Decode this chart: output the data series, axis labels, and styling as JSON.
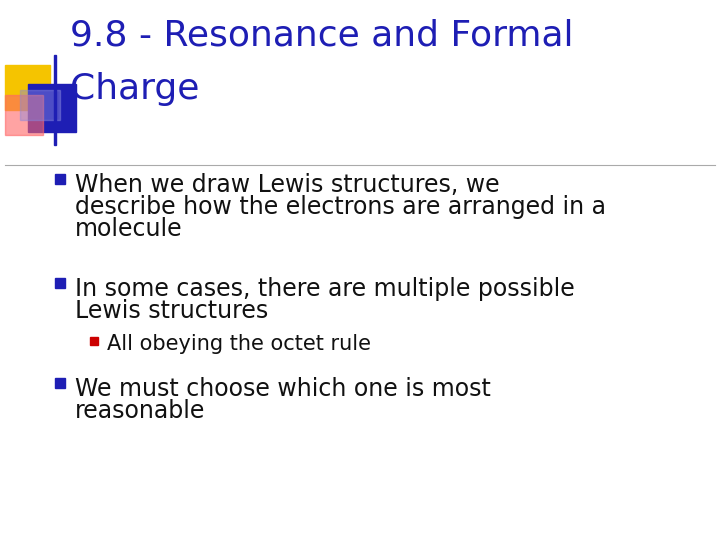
{
  "title_line1": "9.8 - Resonance and Formal",
  "title_line2": "Charge",
  "title_color": "#1e1eb4",
  "title_fontsize": 26,
  "background_color": "#ffffff",
  "bullet1_line1": "When we draw Lewis structures, we",
  "bullet1_line2": "describe how the electrons are arranged in a",
  "bullet1_line3": "molecule",
  "bullet2_line1": "In some cases, there are multiple possible",
  "bullet2_line2": "Lewis structures",
  "sub_bullet": "All obeying the octet rule",
  "bullet3_line1": "We must choose which one is most",
  "bullet3_line2": "reasonable",
  "bullet_color": "#111111",
  "bullet_fontsize": 17,
  "sub_bullet_fontsize": 15,
  "bullet_marker_color_main": "#1e1eb4",
  "bullet_marker_color_sub": "#cc0000",
  "divider_color": "#aaaaaa",
  "logo_yellow": "#f5c400",
  "logo_blue": "#1e1eb4",
  "logo_red_light": "#ff6666",
  "logo_blue_light": "#8888dd"
}
